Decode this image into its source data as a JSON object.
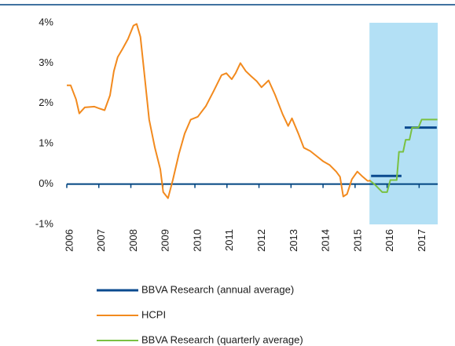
{
  "chart_data": {
    "type": "line",
    "xlim": [
      2006,
      2017.58
    ],
    "xticks": [
      2006,
      2007,
      2008,
      2009,
      2010,
      2011,
      2012,
      2013,
      2014,
      2015,
      2016,
      2017
    ],
    "ylim": [
      -1,
      4
    ],
    "yticks": [
      {
        "value": -1,
        "label": "-1%"
      },
      {
        "value": 0,
        "label": "0%"
      },
      {
        "value": 1,
        "label": "1%"
      },
      {
        "value": 2,
        "label": "2%"
      },
      {
        "value": 3,
        "label": "3%"
      },
      {
        "value": 4,
        "label": "4%"
      }
    ],
    "shaded_region": [
      2015.45,
      2017.58
    ],
    "shaded_color": "#b3e0f5",
    "zero_line_color": "#004481",
    "series": [
      {
        "name": "BBVA Research (annual average)",
        "color": "#0a4a8f",
        "x": [
          2015.5,
          2016.45,
          2016.5,
          2016.55,
          2017.55
        ],
        "values": [
          0.2,
          0.2,
          null,
          1.4,
          1.4
        ]
      },
      {
        "name": "HCPI",
        "color": "#f28a1e",
        "x": [
          2006.0,
          2006.12,
          2006.29,
          2006.39,
          2006.56,
          2006.86,
          2007.03,
          2007.18,
          2007.35,
          2007.47,
          2007.59,
          2007.74,
          2007.91,
          2008.08,
          2008.18,
          2008.3,
          2008.4,
          2008.57,
          2008.75,
          2008.92,
          2009.01,
          2009.16,
          2009.31,
          2009.5,
          2009.68,
          2009.87,
          2010.09,
          2010.34,
          2010.58,
          2010.83,
          2010.98,
          2011.15,
          2011.27,
          2011.42,
          2011.59,
          2011.76,
          2011.93,
          2012.08,
          2012.3,
          2012.5,
          2012.74,
          2012.91,
          2013.03,
          2013.23,
          2013.4,
          2013.6,
          2013.79,
          2014.01,
          2014.21,
          2014.41,
          2014.53,
          2014.63,
          2014.75,
          2014.9,
          2015.07,
          2015.24,
          2015.39,
          2015.49
        ],
        "values": [
          2.45,
          2.45,
          2.1,
          1.75,
          1.9,
          1.92,
          1.87,
          1.83,
          2.2,
          2.8,
          3.15,
          3.35,
          3.6,
          3.93,
          3.97,
          3.65,
          2.9,
          1.6,
          0.9,
          0.37,
          -0.2,
          -0.35,
          0.1,
          0.75,
          1.25,
          1.6,
          1.67,
          1.93,
          2.3,
          2.7,
          2.75,
          2.6,
          2.75,
          3.0,
          2.8,
          2.67,
          2.55,
          2.4,
          2.57,
          2.22,
          1.73,
          1.44,
          1.63,
          1.25,
          0.9,
          0.82,
          0.7,
          0.56,
          0.47,
          0.31,
          0.18,
          -0.31,
          -0.25,
          0.12,
          0.31,
          0.18,
          0.08,
          0.08
        ]
      },
      {
        "name": "BBVA Research (quarterly average)",
        "color": "#7ac142",
        "x": [
          2015.44,
          2015.6,
          2015.85,
          2016.0,
          2016.1,
          2016.3,
          2016.37,
          2016.5,
          2016.58,
          2016.7,
          2016.78,
          2016.98,
          2017.08,
          2017.57
        ],
        "values": [
          0.1,
          0.0,
          -0.2,
          -0.2,
          0.1,
          0.1,
          0.8,
          0.8,
          1.1,
          1.1,
          1.4,
          1.4,
          1.6,
          1.6
        ]
      }
    ]
  }
}
